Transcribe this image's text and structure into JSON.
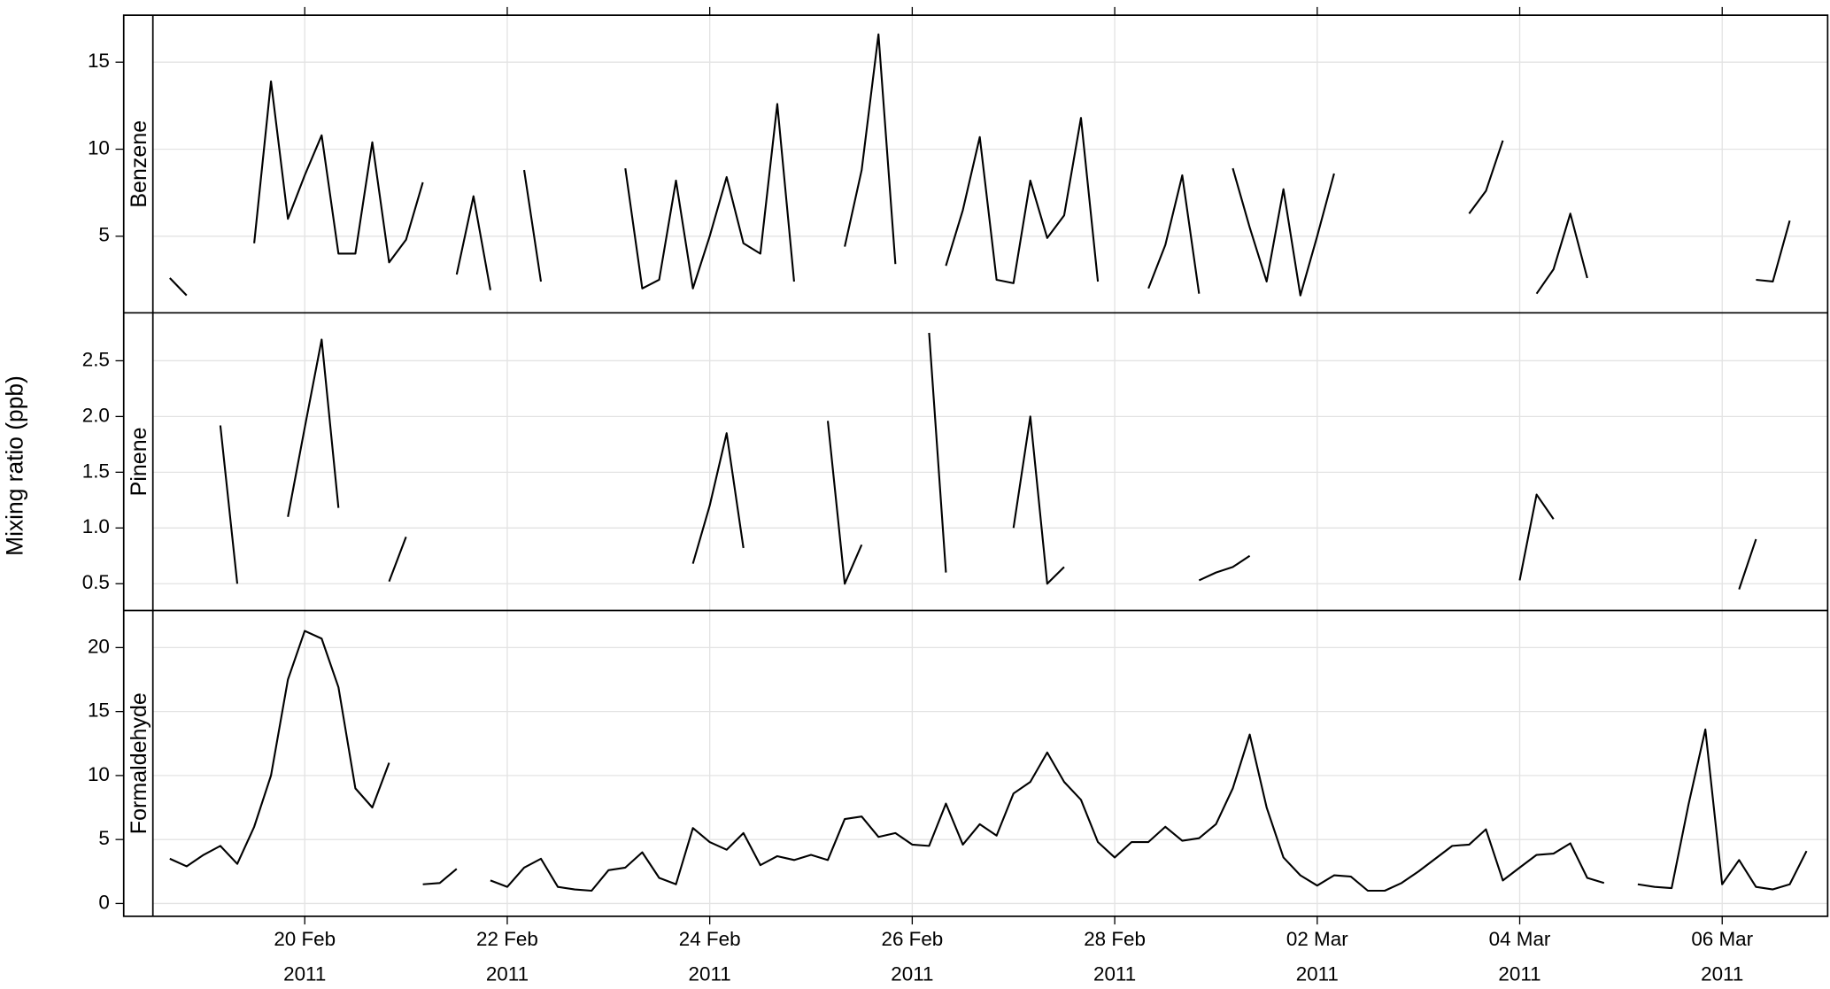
{
  "chart_data": {
    "type": "line",
    "ylabel": "Mixing ratio (ppb)",
    "xlim": [
      "2011-02-18T12:00",
      "2011-03-07T01:00"
    ],
    "xticks": [
      {
        "value": "2011-02-20",
        "label": "20 Feb\n2011"
      },
      {
        "value": "2011-02-22",
        "label": "22 Feb\n2011"
      },
      {
        "value": "2011-02-24",
        "label": "24 Feb\n2011"
      },
      {
        "value": "2011-02-26",
        "label": "26 Feb\n2011"
      },
      {
        "value": "2011-02-28",
        "label": "28 Feb\n2011"
      },
      {
        "value": "2011-03-02",
        "label": "02 Mar\n2011"
      },
      {
        "value": "2011-03-04",
        "label": "04 Mar\n2011"
      },
      {
        "value": "2011-03-06",
        "label": "06 Mar\n2011"
      }
    ],
    "grid": true,
    "x": [
      "2011-02-18T16:00",
      "2011-02-18T20:00",
      "2011-02-19T00:00",
      "2011-02-19T04:00",
      "2011-02-19T08:00",
      "2011-02-19T12:00",
      "2011-02-19T16:00",
      "2011-02-19T20:00",
      "2011-02-20T00:00",
      "2011-02-20T04:00",
      "2011-02-20T08:00",
      "2011-02-20T12:00",
      "2011-02-20T16:00",
      "2011-02-20T20:00",
      "2011-02-21T00:00",
      "2011-02-21T04:00",
      "2011-02-21T08:00",
      "2011-02-21T12:00",
      "2011-02-21T16:00",
      "2011-02-21T20:00",
      "2011-02-22T00:00",
      "2011-02-22T04:00",
      "2011-02-22T08:00",
      "2011-02-22T12:00",
      "2011-02-22T16:00",
      "2011-02-22T20:00",
      "2011-02-23T00:00",
      "2011-02-23T04:00",
      "2011-02-23T08:00",
      "2011-02-23T12:00",
      "2011-02-23T16:00",
      "2011-02-23T20:00",
      "2011-02-24T00:00",
      "2011-02-24T04:00",
      "2011-02-24T08:00",
      "2011-02-24T12:00",
      "2011-02-24T16:00",
      "2011-02-24T20:00",
      "2011-02-25T00:00",
      "2011-02-25T04:00",
      "2011-02-25T08:00",
      "2011-02-25T12:00",
      "2011-02-25T16:00",
      "2011-02-25T20:00",
      "2011-02-26T00:00",
      "2011-02-26T04:00",
      "2011-02-26T08:00",
      "2011-02-26T12:00",
      "2011-02-26T16:00",
      "2011-02-26T20:00",
      "2011-02-27T00:00",
      "2011-02-27T04:00",
      "2011-02-27T08:00",
      "2011-02-27T12:00",
      "2011-02-27T16:00",
      "2011-02-27T20:00",
      "2011-02-28T00:00",
      "2011-02-28T04:00",
      "2011-02-28T08:00",
      "2011-02-28T12:00",
      "2011-02-28T16:00",
      "2011-02-28T20:00",
      "2011-03-01T00:00",
      "2011-03-01T04:00",
      "2011-03-01T08:00",
      "2011-03-01T12:00",
      "2011-03-01T16:00",
      "2011-03-01T20:00",
      "2011-03-02T00:00",
      "2011-03-02T04:00",
      "2011-03-02T08:00",
      "2011-03-02T12:00",
      "2011-03-02T16:00",
      "2011-03-02T20:00",
      "2011-03-03T00:00",
      "2011-03-03T04:00",
      "2011-03-03T08:00",
      "2011-03-03T12:00",
      "2011-03-03T16:00",
      "2011-03-03T20:00",
      "2011-03-04T00:00",
      "2011-03-04T04:00",
      "2011-03-04T08:00",
      "2011-03-04T12:00",
      "2011-03-04T16:00",
      "2011-03-04T20:00",
      "2011-03-05T00:00",
      "2011-03-05T04:00",
      "2011-03-05T08:00",
      "2011-03-05T12:00",
      "2011-03-05T16:00",
      "2011-03-05T20:00",
      "2011-03-06T00:00",
      "2011-03-06T04:00",
      "2011-03-06T08:00",
      "2011-03-06T12:00",
      "2011-03-06T16:00",
      "2011-03-06T20:00",
      "2011-03-07T00:00"
    ],
    "series": [
      {
        "name": "Benzene",
        "color": "#000000",
        "ylim": [
          0.6,
          17.7
        ],
        "yticks": [
          5,
          10,
          15
        ],
        "values": [
          2.6,
          1.6,
          null,
          null,
          null,
          4.6,
          13.9,
          6.0,
          8.5,
          10.8,
          4.0,
          4.0,
          10.4,
          3.5,
          4.8,
          8.1,
          null,
          2.8,
          7.3,
          1.9,
          null,
          8.8,
          2.4,
          null,
          null,
          null,
          null,
          8.9,
          2.0,
          2.5,
          8.2,
          2.0,
          5.0,
          8.4,
          4.6,
          4.0,
          12.6,
          2.4,
          null,
          null,
          4.4,
          8.8,
          16.6,
          3.4,
          null,
          null,
          3.3,
          6.5,
          10.7,
          2.5,
          2.3,
          8.2,
          4.9,
          6.2,
          11.8,
          2.4,
          null,
          null,
          2.0,
          4.5,
          8.5,
          1.7,
          null,
          8.9,
          5.5,
          2.4,
          7.7,
          1.6,
          5.0,
          8.6,
          null,
          null,
          null,
          null,
          null,
          null,
          null,
          6.3,
          7.6,
          10.5,
          null,
          1.7,
          3.1,
          6.3,
          2.6,
          null,
          null,
          null,
          null,
          null,
          null,
          null,
          null,
          null,
          2.5,
          2.4,
          5.9,
          null,
          null
        ]
      },
      {
        "name": "Pinene",
        "color": "#000000",
        "ylim": [
          0.26,
          2.93
        ],
        "yticks": [
          0.5,
          {
            "value": 1,
            "label": "1.0"
          },
          1.5,
          {
            "value": 2,
            "label": "2.0"
          },
          2.5
        ],
        "values": [
          null,
          null,
          null,
          1.92,
          0.5,
          null,
          null,
          1.1,
          1.9,
          2.69,
          1.18,
          null,
          null,
          0.52,
          0.92,
          null,
          null,
          null,
          null,
          null,
          null,
          null,
          null,
          null,
          null,
          null,
          null,
          null,
          null,
          null,
          null,
          0.68,
          1.2,
          1.85,
          0.82,
          null,
          null,
          null,
          null,
          1.96,
          0.5,
          0.85,
          null,
          null,
          null,
          2.75,
          0.6,
          null,
          null,
          null,
          1.0,
          2.0,
          0.5,
          0.65,
          null,
          null,
          null,
          null,
          null,
          null,
          null,
          0.53,
          0.6,
          0.65,
          0.75,
          null,
          null,
          null,
          null,
          null,
          null,
          null,
          null,
          null,
          null,
          null,
          null,
          null,
          null,
          null,
          0.53,
          1.3,
          1.08,
          null,
          null,
          null,
          null,
          null,
          null,
          null,
          null,
          null,
          null,
          0.45,
          0.9,
          null,
          null,
          null,
          null
        ]
      },
      {
        "name": "Formaldehyde",
        "color": "#000000",
        "ylim": [
          -1.0,
          22.9
        ],
        "yticks": [
          0,
          5,
          10,
          15,
          20
        ],
        "values": [
          3.5,
          2.9,
          3.8,
          4.5,
          3.1,
          6.0,
          10.0,
          17.5,
          21.3,
          20.7,
          16.9,
          9.0,
          7.5,
          11.0,
          null,
          1.5,
          1.6,
          2.7,
          null,
          1.8,
          1.3,
          2.8,
          3.5,
          1.3,
          1.1,
          1.0,
          2.6,
          2.8,
          4.0,
          2.0,
          1.5,
          5.9,
          4.8,
          4.2,
          5.5,
          3.0,
          3.7,
          3.4,
          3.8,
          3.4,
          6.6,
          6.8,
          5.2,
          5.5,
          4.6,
          4.5,
          7.8,
          4.6,
          6.2,
          5.3,
          8.6,
          9.5,
          11.8,
          9.5,
          8.1,
          4.8,
          3.6,
          4.8,
          4.8,
          6.0,
          4.9,
          5.1,
          6.2,
          9.0,
          13.2,
          7.5,
          3.6,
          2.2,
          1.4,
          2.2,
          2.1,
          1.0,
          1.0,
          1.6,
          2.5,
          3.5,
          4.5,
          4.6,
          5.8,
          1.8,
          2.8,
          3.8,
          3.9,
          4.7,
          2.0,
          1.6,
          null,
          1.5,
          1.3,
          1.2,
          7.7,
          13.6,
          1.5,
          3.4,
          1.3,
          1.1,
          1.5,
          4.1,
          null
        ]
      }
    ]
  }
}
